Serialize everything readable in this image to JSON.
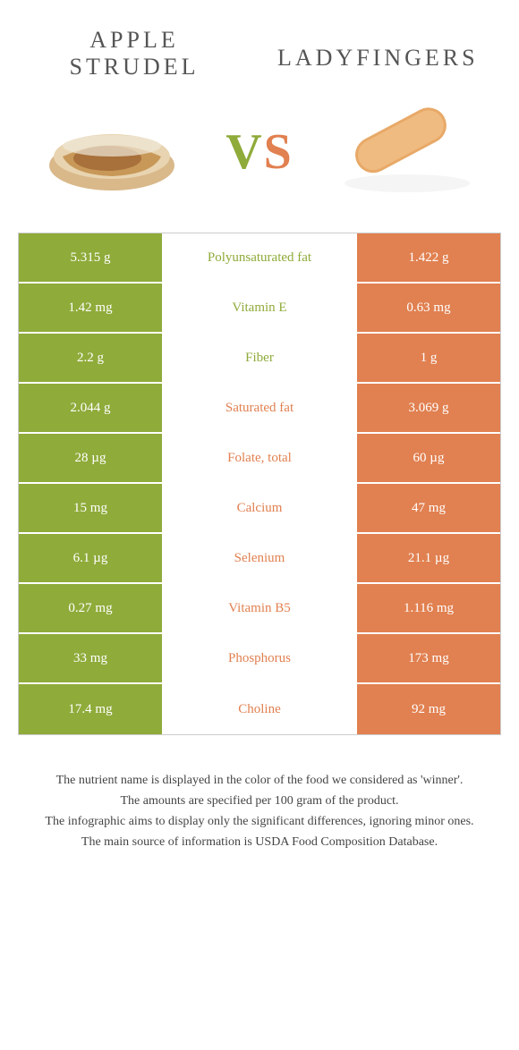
{
  "colors": {
    "green": "#8fab3a",
    "orange": "#e18050",
    "bg": "#ffffff",
    "text": "#333333",
    "inactive_text": "#888888",
    "border": "#cccccc"
  },
  "header": {
    "left_line1": "APPLE",
    "left_line2": "STRUDEL",
    "right": "LADYFINGERS",
    "vs_v": "V",
    "vs_s": "S"
  },
  "rows": [
    {
      "left": "5.315 g",
      "label": "Polyunsaturated fat",
      "right": "1.422 g",
      "winner": "left"
    },
    {
      "left": "1.42 mg",
      "label": "Vitamin E",
      "right": "0.63 mg",
      "winner": "left"
    },
    {
      "left": "2.2 g",
      "label": "Fiber",
      "right": "1 g",
      "winner": "left"
    },
    {
      "left": "2.044 g",
      "label": "Saturated fat",
      "right": "3.069 g",
      "winner": "right"
    },
    {
      "left": "28 µg",
      "label": "Folate, total",
      "right": "60 µg",
      "winner": "right"
    },
    {
      "left": "15 mg",
      "label": "Calcium",
      "right": "47 mg",
      "winner": "right"
    },
    {
      "left": "6.1 µg",
      "label": "Selenium",
      "right": "21.1 µg",
      "winner": "right"
    },
    {
      "left": "0.27 mg",
      "label": "Vitamin B5",
      "right": "1.116 mg",
      "winner": "right"
    },
    {
      "left": "33 mg",
      "label": "Phosphorus",
      "right": "173 mg",
      "winner": "right"
    },
    {
      "left": "17.4 mg",
      "label": "Choline",
      "right": "92 mg",
      "winner": "right"
    }
  ],
  "footnotes": {
    "line1": "The nutrient name is displayed in the color of the food we considered as 'winner'.",
    "line2": "The amounts are specified per 100 gram of the product.",
    "line3": "The infographic aims to display only the significant differences, ignoring minor ones.",
    "line4": "The main source of information is USDA Food Composition Database."
  }
}
